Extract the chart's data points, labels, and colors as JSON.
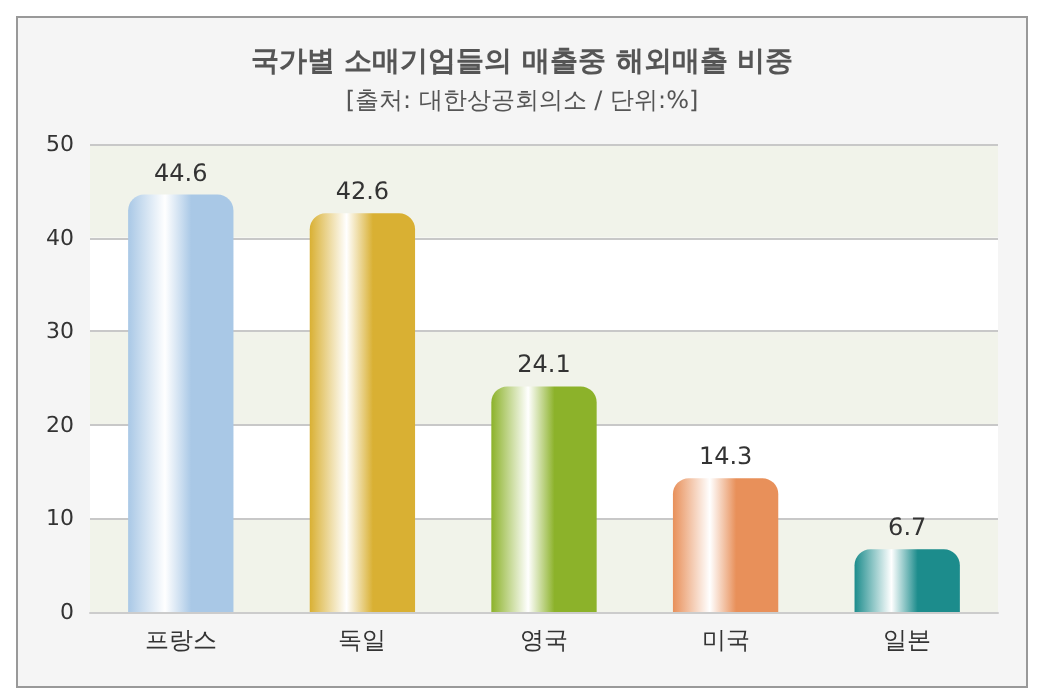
{
  "chart_data": {
    "type": "bar",
    "title": "국가별 소매기업들의 매출중 해외매출 비중",
    "subtitle": "[출처: 대한상공회의소 / 단위:%]",
    "categories": [
      "프랑스",
      "독일",
      "영국",
      "미국",
      "일본"
    ],
    "values": [
      44.6,
      42.6,
      24.1,
      14.3,
      6.7
    ],
    "colors": [
      "#a9c8e6",
      "#d9b033",
      "#8cb22a",
      "#e8905a",
      "#1c8c8c"
    ],
    "ylim": [
      0,
      50
    ],
    "yticks": [
      0,
      10,
      20,
      30,
      40,
      50
    ],
    "grid": "y",
    "data_labels": true
  }
}
